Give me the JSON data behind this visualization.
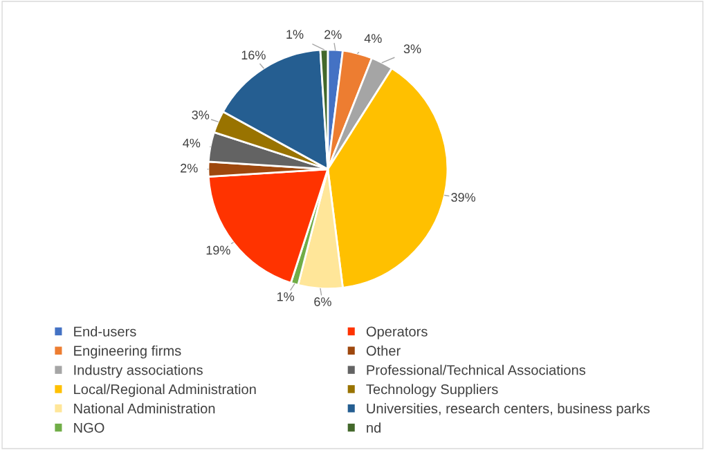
{
  "chart_data": {
    "type": "pie",
    "categories": [
      "End-users",
      "Engineering firms",
      "Industry associations",
      "Local/Regional Administration",
      "National Administration",
      "NGO",
      "Operators",
      "Other",
      "Professional/Technical Associations",
      "Technology Suppliers",
      "Universities, research centers, business parks",
      "nd"
    ],
    "values": [
      2,
      4,
      3,
      39,
      6,
      1,
      19,
      2,
      4,
      3,
      16,
      1
    ],
    "value_labels": [
      "2%",
      "4%",
      "3%",
      "39%",
      "6%",
      "1%",
      "19%",
      "2%",
      "4%",
      "3%",
      "16%",
      "1%"
    ],
    "colors": [
      "#4472c4",
      "#ed7d31",
      "#a5a5a5",
      "#ffc000",
      "#ffe699",
      "#70ad47",
      "#ff3300",
      "#9e480e",
      "#636363",
      "#997300",
      "#255e91",
      "#43682b"
    ],
    "legend": "bottom"
  }
}
